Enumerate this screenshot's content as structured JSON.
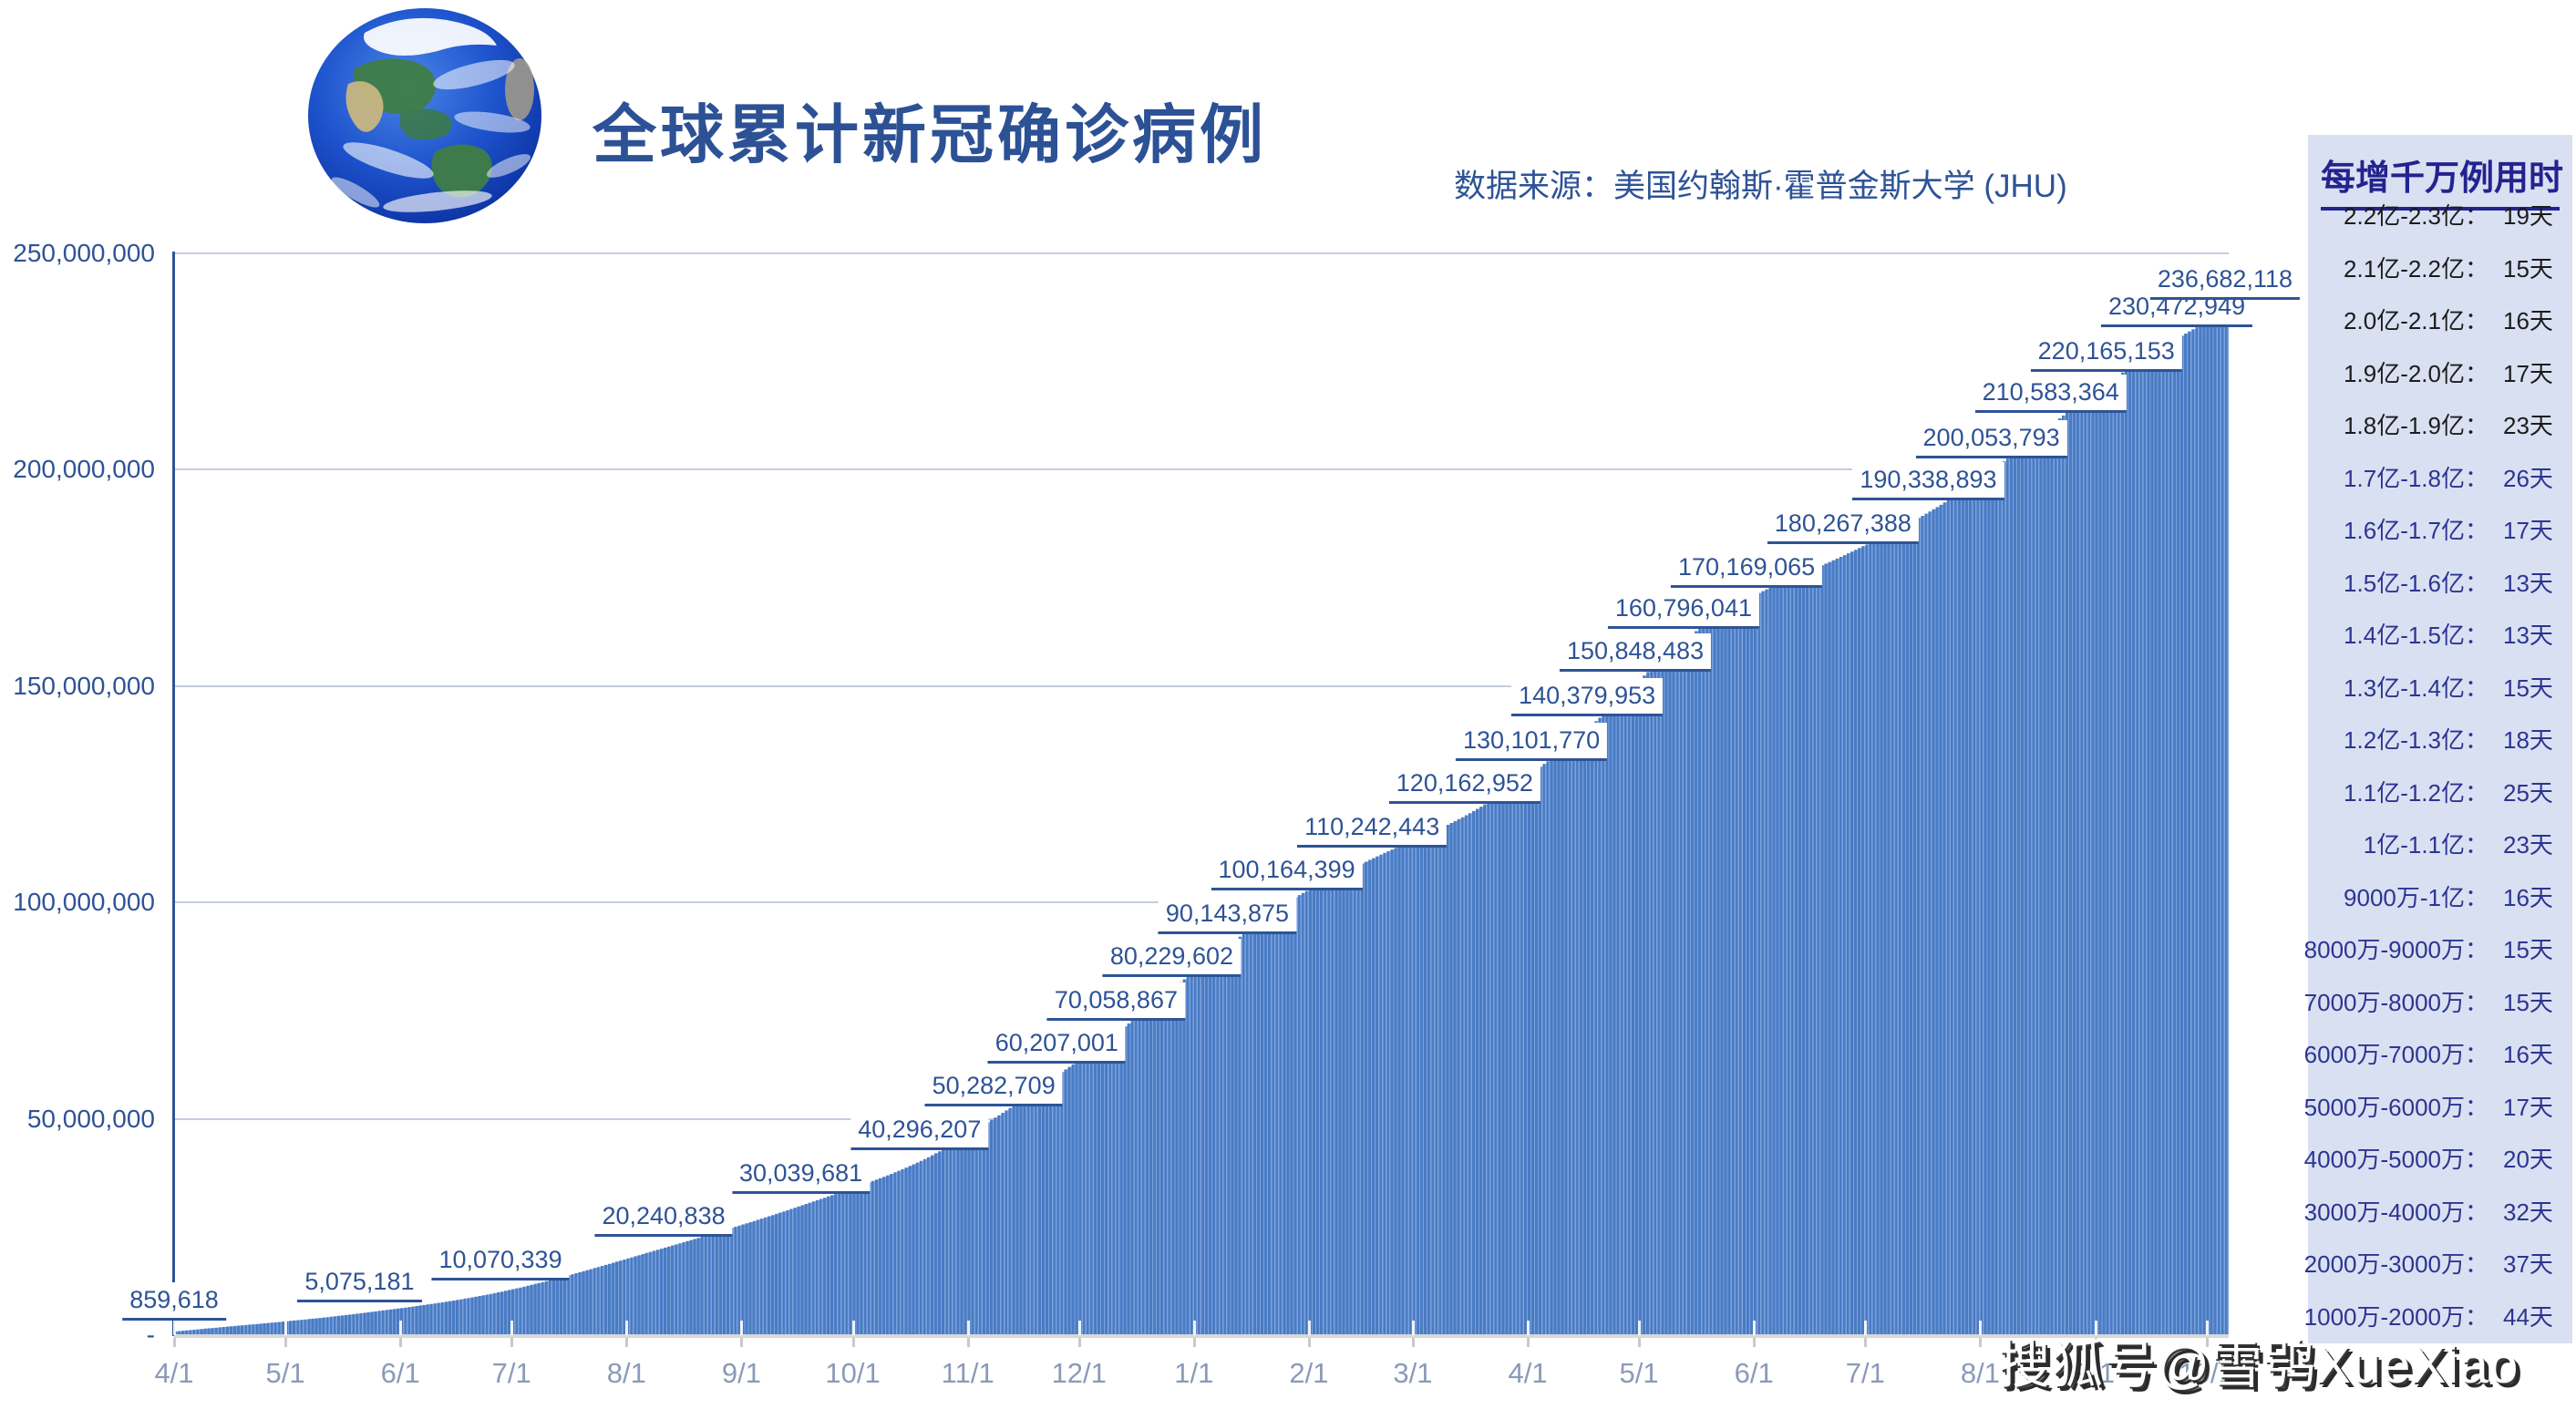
{
  "header": {
    "title": "全球累计新冠确诊病例",
    "source": "数据来源：美国约翰斯·霍普金斯大学 (JHU)"
  },
  "page": {
    "watermark": "搜狐号@雪鸮XueXiao"
  },
  "chart_data": {
    "type": "bar",
    "title": "全球累计新冠确诊病例",
    "ylabel": "",
    "xlabel": "",
    "ylim": [
      0,
      250000000
    ],
    "gridline_step": 50000000,
    "grid": true,
    "y_tick_labels": [
      "250,000,000",
      "200,000,000",
      "150,000,000",
      "100,000,000",
      "50,000,000",
      "-"
    ],
    "x_tick_labels": [
      {
        "label": "4/1",
        "day": 0
      },
      {
        "label": "5/1",
        "day": 30
      },
      {
        "label": "6/1",
        "day": 61
      },
      {
        "label": "7/1",
        "day": 91
      },
      {
        "label": "8/1",
        "day": 122
      },
      {
        "label": "9/1",
        "day": 153
      },
      {
        "label": "10/1",
        "day": 183
      },
      {
        "label": "11/1",
        "day": 214
      },
      {
        "label": "12/1",
        "day": 244
      },
      {
        "label": "1/1",
        "day": 275
      },
      {
        "label": "2/1",
        "day": 306
      },
      {
        "label": "3/1",
        "day": 334
      },
      {
        "label": "4/1",
        "day": 365
      },
      {
        "label": "5/1",
        "day": 395
      },
      {
        "label": "6/1",
        "day": 426
      },
      {
        "label": "7/1",
        "day": 456
      },
      {
        "label": "8/1",
        "day": 487
      },
      {
        "label": "9/1",
        "day": 518
      },
      {
        "label": "10/1",
        "day": 548
      }
    ],
    "total_days": 554,
    "milestones": [
      {
        "label": "859,618",
        "value": 859618,
        "day": 0
      },
      {
        "label": "5,075,181",
        "value": 5075181,
        "day": 50
      },
      {
        "label": "10,070,339",
        "value": 10070339,
        "day": 88
      },
      {
        "label": "20,240,838",
        "value": 20240838,
        "day": 132
      },
      {
        "label": "30,039,681",
        "value": 30039681,
        "day": 169
      },
      {
        "label": "40,296,207",
        "value": 40296207,
        "day": 201
      },
      {
        "label": "50,282,709",
        "value": 50282709,
        "day": 221
      },
      {
        "label": "60,207,001",
        "value": 60207001,
        "day": 238
      },
      {
        "label": "70,058,867",
        "value": 70058867,
        "day": 254
      },
      {
        "label": "80,229,602",
        "value": 80229602,
        "day": 269
      },
      {
        "label": "90,143,875",
        "value": 90143875,
        "day": 284
      },
      {
        "label": "100,164,399",
        "value": 100164399,
        "day": 300
      },
      {
        "label": "110,242,443",
        "value": 110242443,
        "day": 323
      },
      {
        "label": "120,162,952",
        "value": 120162952,
        "day": 348
      },
      {
        "label": "130,101,770",
        "value": 130101770,
        "day": 366
      },
      {
        "label": "140,379,953",
        "value": 140379953,
        "day": 381
      },
      {
        "label": "150,848,483",
        "value": 150848483,
        "day": 394
      },
      {
        "label": "160,796,041",
        "value": 160796041,
        "day": 407
      },
      {
        "label": "170,169,065",
        "value": 170169065,
        "day": 424
      },
      {
        "label": "180,267,388",
        "value": 180267388,
        "day": 450
      },
      {
        "label": "190,338,893",
        "value": 190338893,
        "day": 473
      },
      {
        "label": "200,053,793",
        "value": 200053793,
        "day": 490
      },
      {
        "label": "210,583,364",
        "value": 210583364,
        "day": 506
      },
      {
        "label": "220,165,153",
        "value": 220165153,
        "day": 521
      },
      {
        "label": "230,472,949",
        "value": 230472949,
        "day": 540
      },
      {
        "label": "236,682,118",
        "value": 236682118,
        "day": 553
      }
    ],
    "colors": {
      "bar": "#4a7bc4",
      "bar_stripe": "#7ba3dc",
      "milestone_label": "#2e5396",
      "axis": "#2e5396",
      "gridline": "#c3cde0",
      "baseline": "#d8d8d8",
      "month_label": "#8a9ab8"
    },
    "legend": null
  },
  "panel": {
    "title": "每增千万例用时",
    "colors": {
      "bg": "#d9e0f2",
      "title": "#23238f",
      "item": "#2c3490",
      "emphasis_item": "#1c1c1c"
    },
    "items": [
      {
        "range": "2.2亿-2.3亿：",
        "days": "19天",
        "emphasis": true
      },
      {
        "range": "2.1亿-2.2亿：",
        "days": "15天",
        "emphasis": true
      },
      {
        "range": "2.0亿-2.1亿：",
        "days": "16天",
        "emphasis": true
      },
      {
        "range": "1.9亿-2.0亿：",
        "days": "17天",
        "emphasis": true
      },
      {
        "range": "1.8亿-1.9亿：",
        "days": "23天",
        "emphasis": true
      },
      {
        "range": "1.7亿-1.8亿：",
        "days": "26天",
        "emphasis": false
      },
      {
        "range": "1.6亿-1.7亿：",
        "days": "17天",
        "emphasis": false
      },
      {
        "range": "1.5亿-1.6亿：",
        "days": "13天",
        "emphasis": false
      },
      {
        "range": "1.4亿-1.5亿：",
        "days": "13天",
        "emphasis": false
      },
      {
        "range": "1.3亿-1.4亿：",
        "days": "15天",
        "emphasis": false
      },
      {
        "range": "1.2亿-1.3亿：",
        "days": "18天",
        "emphasis": false
      },
      {
        "range": "1.1亿-1.2亿：",
        "days": "25天",
        "emphasis": false
      },
      {
        "range": "1亿-1.1亿：",
        "days": "23天",
        "emphasis": false
      },
      {
        "range": "9000万-1亿：",
        "days": "16天",
        "emphasis": false
      },
      {
        "range": "8000万-9000万：",
        "days": "15天",
        "emphasis": false
      },
      {
        "range": "7000万-8000万：",
        "days": "15天",
        "emphasis": false
      },
      {
        "range": "6000万-7000万：",
        "days": "16天",
        "emphasis": false
      },
      {
        "range": "5000万-6000万：",
        "days": "17天",
        "emphasis": false
      },
      {
        "range": "4000万-5000万：",
        "days": "20天",
        "emphasis": false
      },
      {
        "range": "3000万-4000万：",
        "days": "32天",
        "emphasis": false
      },
      {
        "range": "2000万-3000万：",
        "days": "37天",
        "emphasis": false
      },
      {
        "range": "1000万-2000万：",
        "days": "44天",
        "emphasis": false
      }
    ]
  }
}
